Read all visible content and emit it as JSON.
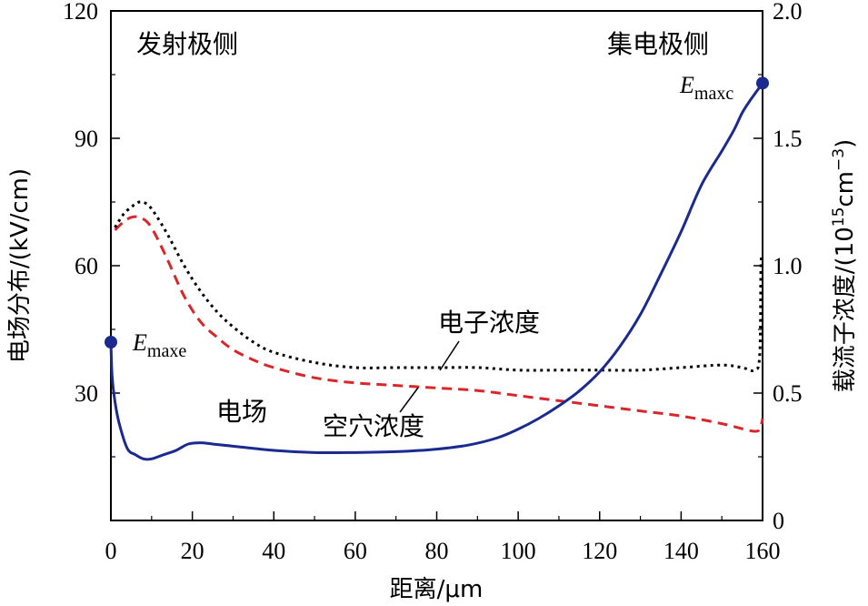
{
  "chart_data": {
    "type": "line",
    "xlabel": "距离/μm",
    "ylabel_left": "电场分布/(kV/cm)",
    "ylabel_right": {
      "main": "载流子浓度/(10",
      "sup1": "15",
      "mid": "cm",
      "sup2": "−3",
      "end": ")"
    },
    "xlim": [
      0,
      160
    ],
    "ylim_left": [
      0,
      120
    ],
    "ylim_right": [
      0,
      2.0
    ],
    "xticks": [
      "0",
      "20",
      "40",
      "60",
      "80",
      "100",
      "120",
      "140",
      "160"
    ],
    "yticks_left": [
      "30",
      "60",
      "90",
      "120"
    ],
    "yticks_right": [
      "0",
      "0.5",
      "1.0",
      "1.5",
      "2.0"
    ],
    "grid": false,
    "annotations": {
      "emitter_side": "发射极侧",
      "collector_side": "集电极侧",
      "electric_field": "电场",
      "electron_conc": "电子浓度",
      "hole_conc": "空穴浓度",
      "emaxe": {
        "base": "E",
        "sub": "maxe"
      },
      "emaxc": {
        "base": "E",
        "sub": "maxc"
      }
    },
    "series": [
      {
        "name": "电场",
        "axis": "left",
        "style": "solid",
        "color": "#1b2a8f",
        "x": [
          0,
          0.3,
          1,
          2,
          4,
          6,
          8,
          10,
          13,
          16,
          19,
          22,
          25,
          30,
          40,
          50,
          60,
          70,
          80,
          88,
          95,
          100,
          105,
          110,
          115,
          120,
          125,
          130,
          135,
          140,
          145,
          150,
          153,
          155,
          157,
          158.5,
          160
        ],
        "y": [
          42,
          34,
          28,
          23,
          17,
          15.5,
          14.5,
          14.5,
          15.5,
          16.5,
          18,
          18.3,
          18,
          17.5,
          16.5,
          16,
          16,
          16.2,
          16.8,
          17.8,
          19.5,
          21.5,
          24,
          27,
          30.5,
          35,
          41,
          48.5,
          58,
          68,
          79,
          87,
          92,
          96,
          99,
          101,
          103
        ]
      },
      {
        "name": "电子浓度",
        "axis": "right",
        "style": "dotted",
        "color": "#000000",
        "x": [
          1,
          3,
          5,
          7,
          9,
          11,
          14,
          18,
          22,
          26,
          30,
          35,
          40,
          50,
          60,
          70,
          80,
          90,
          100,
          110,
          120,
          130,
          140,
          150,
          155,
          158,
          159.3,
          159.6,
          160
        ],
        "y": [
          1.15,
          1.2,
          1.23,
          1.25,
          1.24,
          1.2,
          1.12,
          1.0,
          0.9,
          0.82,
          0.76,
          0.7,
          0.66,
          0.62,
          0.6,
          0.6,
          0.6,
          0.6,
          0.59,
          0.59,
          0.59,
          0.59,
          0.6,
          0.61,
          0.6,
          0.59,
          0.65,
          1.0,
          1.04
        ]
      },
      {
        "name": "空穴浓度",
        "axis": "right",
        "style": "dashed",
        "color": "#d8262a",
        "x": [
          1,
          3,
          5,
          7,
          9,
          11,
          14,
          18,
          22,
          26,
          30,
          35,
          40,
          50,
          60,
          70,
          80,
          90,
          100,
          110,
          120,
          130,
          140,
          150,
          158,
          159.5,
          160
        ],
        "y": [
          1.14,
          1.17,
          1.19,
          1.19,
          1.17,
          1.12,
          1.02,
          0.88,
          0.78,
          0.72,
          0.67,
          0.63,
          0.6,
          0.56,
          0.54,
          0.53,
          0.52,
          0.51,
          0.49,
          0.47,
          0.45,
          0.43,
          0.41,
          0.38,
          0.35,
          0.37,
          0.4
        ]
      }
    ],
    "markers": [
      {
        "series": "电场",
        "x": 0,
        "y": 42
      },
      {
        "series": "电场",
        "x": 160,
        "y": 103
      }
    ]
  }
}
